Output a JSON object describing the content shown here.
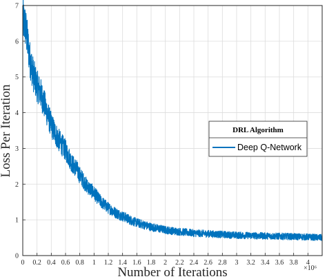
{
  "chart_data": {
    "type": "line",
    "title": "",
    "xlabel": "Number of Iterations",
    "ylabel": "Loss Per Iteration",
    "x_multiplier_label": "×10⁶",
    "xlim": [
      0,
      4.2
    ],
    "ylim": [
      0,
      7
    ],
    "x_ticks": [
      "0",
      "0.2",
      "0.4",
      "0.6",
      "0.8",
      "1",
      "1.2",
      "1.4",
      "1.6",
      "1.8",
      "2",
      "2.2",
      "2.4",
      "2.6",
      "2.8",
      "3",
      "3.2",
      "3.4",
      "3.6",
      "3.8",
      "4"
    ],
    "y_ticks": [
      "0",
      "1",
      "2",
      "3",
      "4",
      "5",
      "6",
      "7"
    ],
    "grid": true,
    "legend": {
      "title": "DRL Algorithm",
      "position": "right",
      "entries": [
        "Deep Q-Network"
      ]
    },
    "series": [
      {
        "name": "Deep Q-Network",
        "color": "#0072BD",
        "x": [
          0,
          0.025,
          0.05,
          0.1,
          0.15,
          0.2,
          0.25,
          0.3,
          0.35,
          0.4,
          0.45,
          0.5,
          0.55,
          0.6,
          0.65,
          0.7,
          0.75,
          0.8,
          0.85,
          0.9,
          0.95,
          1.0,
          1.05,
          1.1,
          1.15,
          1.2,
          1.25,
          1.3,
          1.35,
          1.4,
          1.45,
          1.5,
          1.6,
          1.7,
          1.8,
          1.9,
          2.0,
          2.1,
          2.2,
          2.3,
          2.4,
          2.5,
          2.6,
          2.7,
          2.8,
          2.9,
          3.0,
          3.2,
          3.4,
          3.6,
          3.8,
          4.0,
          4.2
        ],
        "y": [
          6.6,
          6.5,
          6.25,
          5.5,
          5.05,
          4.75,
          4.55,
          4.25,
          3.95,
          3.65,
          3.45,
          3.25,
          3.1,
          2.95,
          2.75,
          2.55,
          2.45,
          2.25,
          2.1,
          1.95,
          1.85,
          1.75,
          1.62,
          1.5,
          1.42,
          1.33,
          1.27,
          1.2,
          1.15,
          1.1,
          1.06,
          1.0,
          0.92,
          0.86,
          0.8,
          0.76,
          0.72,
          0.69,
          0.67,
          0.65,
          0.63,
          0.62,
          0.61,
          0.6,
          0.59,
          0.58,
          0.57,
          0.56,
          0.55,
          0.54,
          0.53,
          0.52,
          0.5
        ]
      }
    ]
  }
}
